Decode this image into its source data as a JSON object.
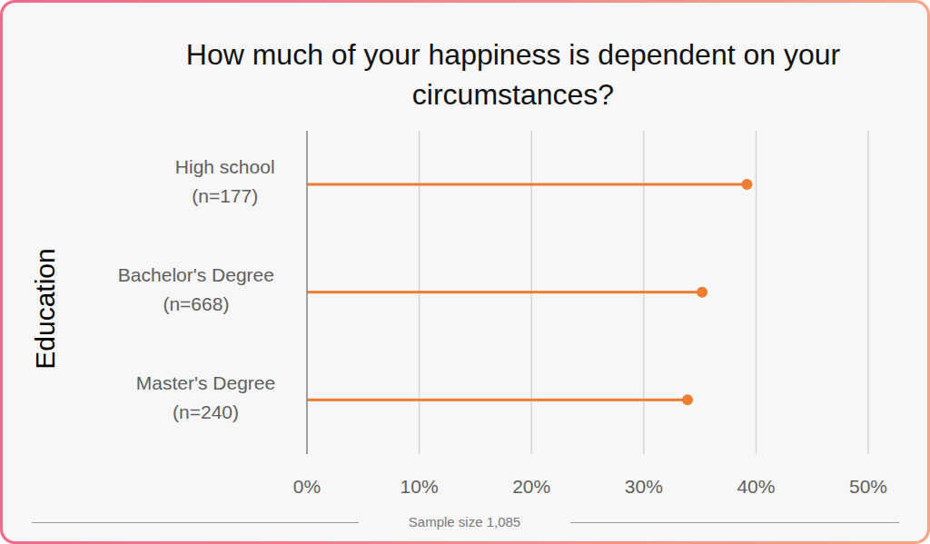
{
  "chart_data": {
    "type": "lollipop",
    "orientation": "horizontal",
    "title": "How much of your happiness is dependent on your circumstances?",
    "y_label": "Education",
    "caption": "Sample size 1,085",
    "categories": [
      "High school (n=177)",
      "Bachelor's Degree (n=668)",
      "Master's Degree (n=240)"
    ],
    "values": [
      39.2,
      35.2,
      33.9
    ],
    "color": "#ed7d31",
    "xlim": [
      0,
      50
    ],
    "xticks": [
      {
        "value": 0,
        "label": "0%"
      },
      {
        "value": 10,
        "label": "10%"
      },
      {
        "value": 20,
        "label": "20%"
      },
      {
        "value": 30,
        "label": "30%"
      },
      {
        "value": 40,
        "label": "40%"
      },
      {
        "value": 50,
        "label": "50%"
      }
    ],
    "grid": true
  }
}
